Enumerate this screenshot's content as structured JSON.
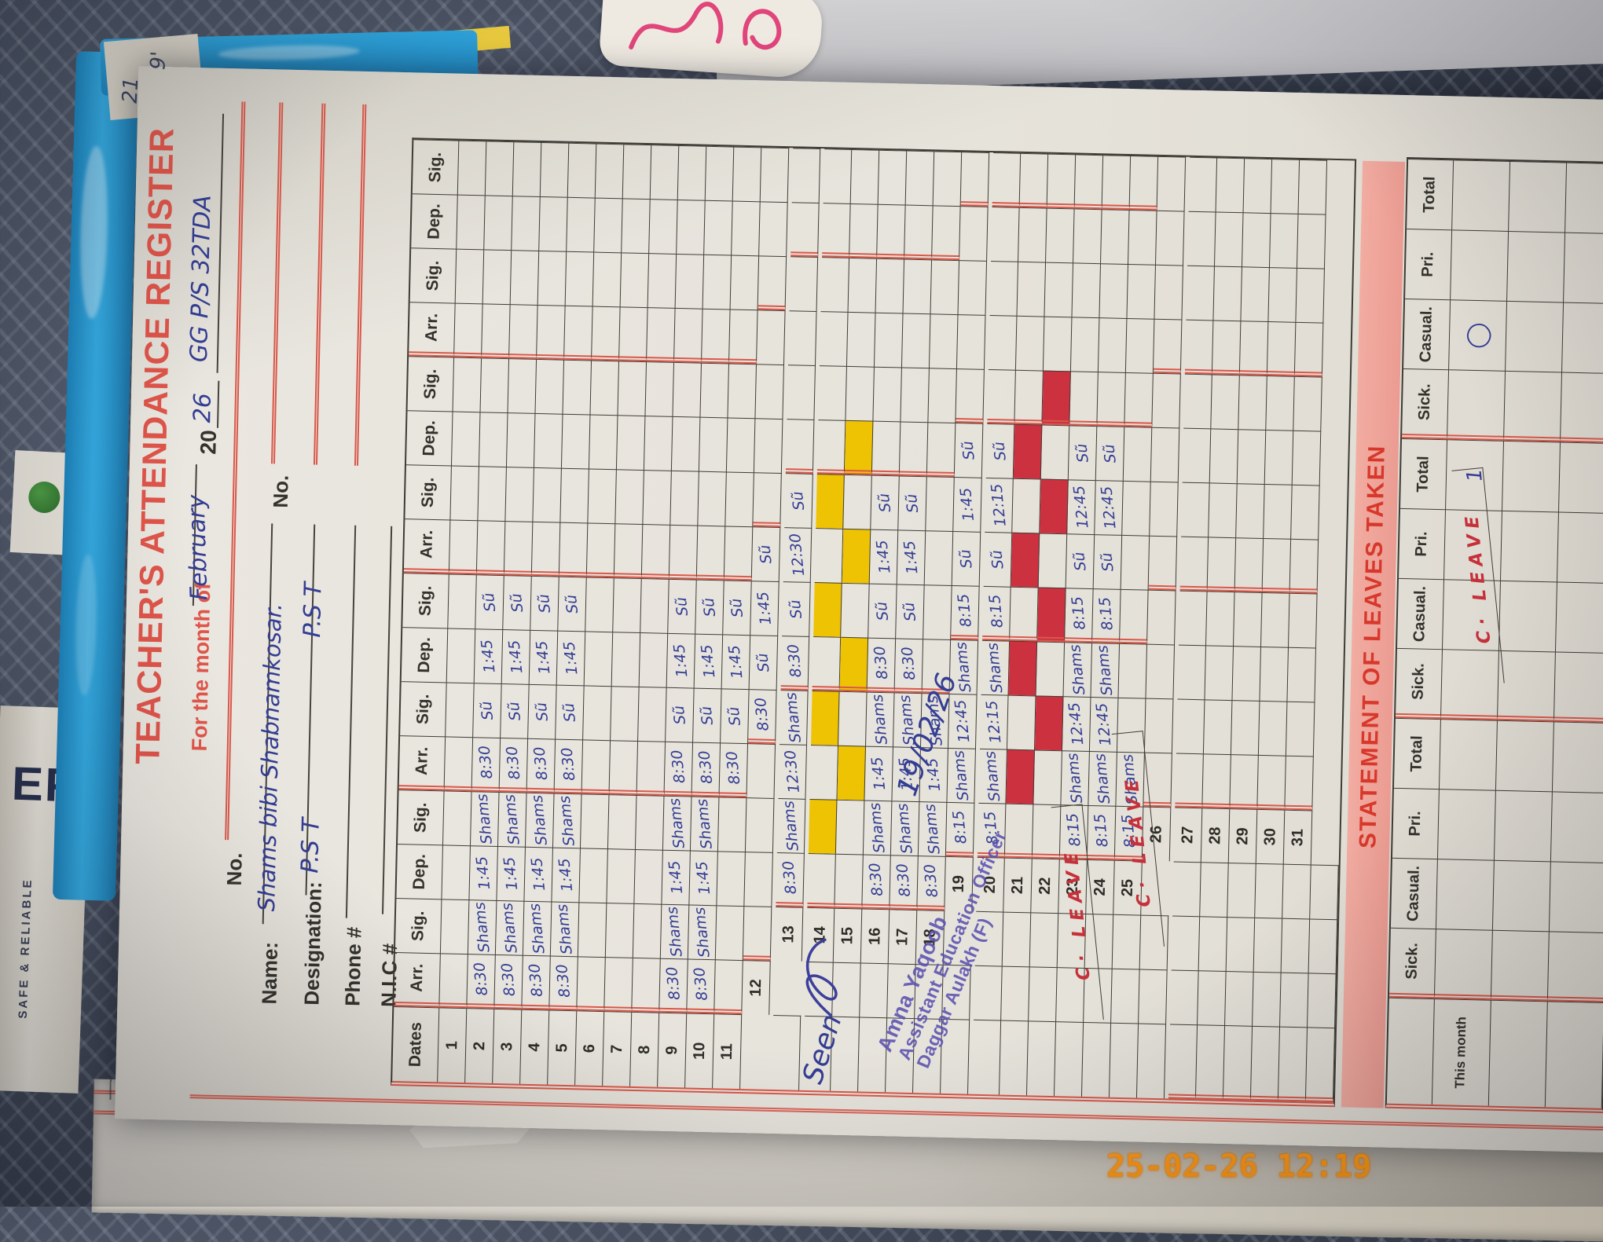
{
  "scene": {
    "timestamp": "25-02-26  12:19",
    "corner_note_1": "21",
    "corner_note_2": "9'",
    "spine_brand": "EP",
    "spine_tagline": "SAFE & RELIABLE"
  },
  "form": {
    "title": "TEACHER'S ATTENDANCE REGISTER",
    "month_label": "For the month of",
    "month_value": "February",
    "year_prefix": "20",
    "year_suffix": "26",
    "school_value": "GG P/S 32TDA",
    "no_label": "No.",
    "name_label": "Name:",
    "name_value": "Shams bibi Shabnamkosar.",
    "designation_label": "Designation:",
    "designation_value": "P.S T",
    "designation_value2": "P.S T",
    "phone_label": "Phone #",
    "nic_label": "N.I.C #"
  },
  "table": {
    "dates_label": "Dates",
    "group_headers": [
      "Arr.",
      "Sig.",
      "Dep.",
      "Sig."
    ],
    "groups": 4,
    "leave_text": "C· LEAVE",
    "highlight_colors": {
      "y": "#eec303",
      "r": "#cc3140"
    },
    "rows": [
      {
        "d": "1",
        "c": []
      },
      {
        "d": "2",
        "c": [
          "8:30",
          "Shams",
          "1:45",
          "Shams",
          "8:30",
          "Sũ",
          "1:45",
          "Sũ"
        ]
      },
      {
        "d": "3",
        "c": [
          "8:30",
          "Shams",
          "1:45",
          "Shams",
          "8:30",
          "Sũ",
          "1:45",
          "Sũ"
        ]
      },
      {
        "d": "4",
        "c": [
          "8:30",
          "Shams",
          "1:45",
          "Shams",
          "8:30",
          "Sũ",
          "1:45",
          "Sũ"
        ]
      },
      {
        "d": "5",
        "c": [
          "8:30",
          "Shams",
          "1:45",
          "Shams",
          "8:30",
          "Sũ",
          "1:45",
          "Sũ"
        ]
      },
      {
        "d": "6",
        "c": []
      },
      {
        "d": "7",
        "c": []
      },
      {
        "d": "8",
        "c": []
      },
      {
        "d": "9",
        "c": [
          "8:30",
          "Shams",
          "1:45",
          "Shams",
          "8:30",
          "Sũ",
          "1:45",
          "Sũ"
        ]
      },
      {
        "d": "10",
        "c": [
          "8:30",
          "Shams",
          "1:45",
          "Shams",
          "8:30",
          "Sũ",
          "1:45",
          "Sũ"
        ]
      },
      {
        "d": "11",
        "c": [
          "",
          "",
          "",
          "",
          "8:30",
          "Sũ",
          "1:45",
          "Sũ"
        ],
        "leave": 1
      },
      {
        "d": "12",
        "c": [
          "",
          "",
          "",
          "",
          "8:30",
          "Sũ",
          "1:45",
          "Sũ"
        ],
        "leave": 1
      },
      {
        "d": "13",
        "c": [
          "8:30",
          "Shams",
          "12:30",
          "Shams",
          "8:30",
          "Sũ",
          "12:30",
          "Sũ"
        ]
      },
      {
        "d": "14",
        "c": [],
        "hl": {
          "color": "y",
          "cells": [
            1,
            3,
            5,
            7
          ]
        }
      },
      {
        "d": "15",
        "c": [],
        "hl": {
          "color": "y",
          "cells": [
            2,
            4,
            6,
            8
          ]
        }
      },
      {
        "d": "16",
        "c": [
          "8:30",
          "Shams",
          "1:45",
          "Shams",
          "8:30",
          "Sũ",
          "1:45",
          "Sũ"
        ]
      },
      {
        "d": "17",
        "c": [
          "8:30",
          "Shams",
          "1:45",
          "Shams",
          "8:30",
          "Sũ",
          "1:45",
          "Sũ"
        ]
      },
      {
        "d": "18",
        "c": [
          "8:30",
          "Shams",
          "1:45",
          "Shams",
          "",
          "",
          "",
          ""
        ],
        "leave": 2
      },
      {
        "d": "19",
        "c": [
          "8:15",
          "Shams",
          "12:45",
          "Shams",
          "8:15",
          "Sũ",
          "1:45",
          "Sũ"
        ]
      },
      {
        "d": "20",
        "c": [
          "8:15",
          "Shams",
          "12:15",
          "Shams",
          "8:15",
          "Sũ",
          "12:15",
          "Sũ"
        ]
      },
      {
        "d": "21",
        "c": [],
        "hl": {
          "color": "r",
          "cells": [
            1,
            3,
            5,
            7
          ]
        }
      },
      {
        "d": "22",
        "c": [],
        "hl": {
          "color": "r",
          "cells": [
            2,
            4,
            6,
            8
          ]
        }
      },
      {
        "d": "23",
        "c": [
          "8:15",
          "Shams",
          "12:45",
          "Shams",
          "8:15",
          "Sũ",
          "12:45",
          "Sũ"
        ]
      },
      {
        "d": "24",
        "c": [
          "8:15",
          "Shams",
          "12:45",
          "Shams",
          "8:15",
          "Sũ",
          "12:45",
          "Sũ"
        ]
      },
      {
        "d": "25",
        "c": [
          "8:15",
          "Shams",
          "",
          "",
          "",
          "",
          "",
          ""
        ],
        "leave": 2
      },
      {
        "d": "26",
        "c": []
      },
      {
        "d": "27",
        "c": []
      },
      {
        "d": "28",
        "c": []
      },
      {
        "d": "29",
        "c": []
      },
      {
        "d": "30",
        "c": []
      },
      {
        "d": "31",
        "c": []
      }
    ]
  },
  "annotations": {
    "seen": "Seen",
    "inspection_date": "19/02/26",
    "stamp_line1": "Amna Yaqoob",
    "stamp_line2": "Assistant Education Officer",
    "stamp_line3": "Daggar Aulakh (F)"
  },
  "statement": {
    "band_title": "STATEMENT OF LEAVES TAKEN",
    "col_headers": [
      "Sick.",
      "Casual.",
      "Pri.",
      "Total"
    ],
    "groups": 3,
    "row1_label": "This month",
    "mark_total_g2": "1",
    "mark_casual_g3": "◯"
  }
}
